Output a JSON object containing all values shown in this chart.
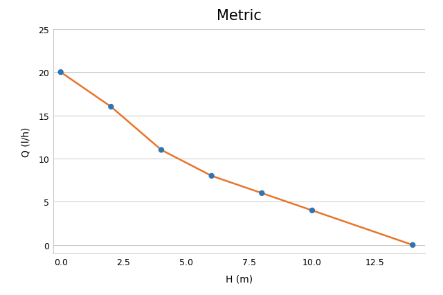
{
  "title": "Metric",
  "xlabel": "H (m)",
  "ylabel": "Q (l/h)",
  "x_data": [
    0,
    2,
    4,
    6,
    8,
    10,
    14
  ],
  "y_data": [
    20,
    16,
    11,
    8,
    6,
    4,
    0
  ],
  "xlim": [
    -0.3,
    14.5
  ],
  "ylim": [
    -1.0,
    25
  ],
  "xticks": [
    0,
    2.5,
    5,
    7.5,
    10,
    12.5
  ],
  "yticks": [
    0,
    5,
    10,
    15,
    20,
    25
  ],
  "line_color": "#E8742A",
  "marker_color": "#2E75B6",
  "background_color": "#ffffff",
  "grid_color": "#C8C8C8",
  "title_fontsize": 15,
  "label_fontsize": 10,
  "tick_fontsize": 9,
  "marker_size": 6,
  "line_width": 1.8
}
